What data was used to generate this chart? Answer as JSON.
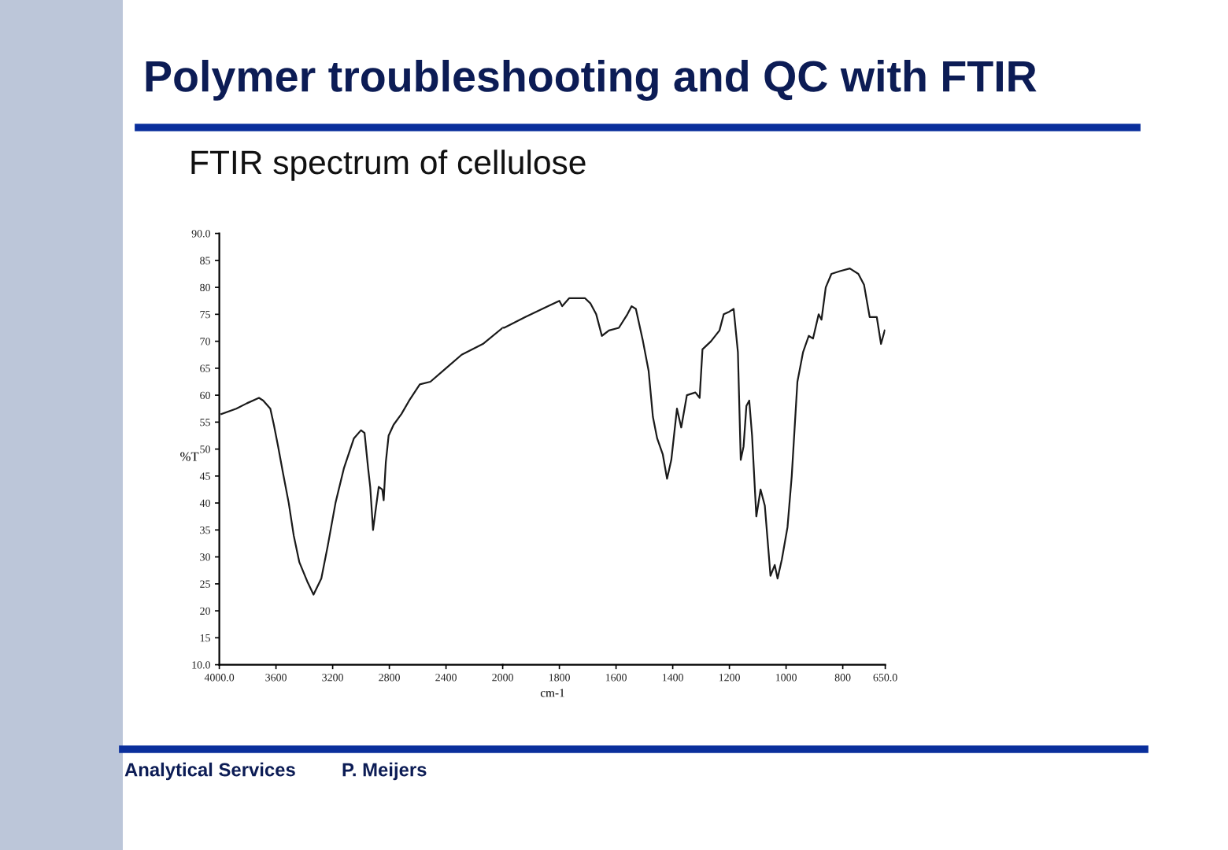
{
  "chart_data": [
    {
      "type": "line",
      "title": "Polymer troubleshooting and QC with FTIR",
      "subtitle": "FTIR spectrum of cellulose",
      "ylabel": "%T",
      "annotations": [
        "Analytical Services",
        "P. Meijers"
      ],
      "x": [
        3985,
        3880,
        3805,
        3720,
        3690,
        3640,
        3615,
        3585,
        3550,
        3510,
        3475,
        3435,
        3380,
        3335,
        3280,
        3235,
        3180,
        3120,
        3050,
        3000,
        2975,
        2950,
        2935,
        2915,
        2895,
        2875,
        2850,
        2840,
        2825,
        2805,
        2770,
        2715,
        2660,
        2585,
        2510,
        2400,
        2290,
        2140,
        2000
      ],
      "values": [
        56.5,
        57.5,
        58.5,
        59.5,
        59,
        57.5,
        54.5,
        50.5,
        45.5,
        40,
        34,
        29,
        25.5,
        23,
        26,
        32,
        40,
        46.5,
        52,
        53.5,
        53,
        46.5,
        43,
        35,
        39,
        43,
        42.5,
        40.5,
        47.5,
        52.5,
        54.5,
        56.5,
        59,
        62,
        62.5,
        65,
        67.5,
        69.5,
        72.5
      ],
      "color": "#1a1a1a",
      "xlim": [
        4000,
        2000
      ],
      "xticks": [
        {
          "value": 4000,
          "label": "4000.0"
        },
        3600,
        3200,
        2800,
        2400,
        2000
      ],
      "ylim": [
        10,
        90
      ],
      "yticks": [
        {
          "value": 10,
          "label": "10.0"
        },
        15,
        20,
        25,
        30,
        35,
        40,
        45,
        50,
        55,
        60,
        65,
        70,
        75,
        80,
        85,
        {
          "value": 90,
          "label": "90.0"
        }
      ]
    },
    {
      "type": "line",
      "xlabel": "cm-1",
      "x": [
        2000,
        1995,
        1920,
        1840,
        1800,
        1790,
        1765,
        1720,
        1710,
        1690,
        1670,
        1650,
        1625,
        1590,
        1560,
        1545,
        1530,
        1505,
        1485,
        1470,
        1455,
        1435,
        1420,
        1405,
        1385,
        1370,
        1350,
        1320,
        1305,
        1295,
        1265,
        1235,
        1220,
        1200,
        1185,
        1170,
        1160,
        1150,
        1140,
        1130,
        1120,
        1105,
        1090,
        1075,
        1055,
        1040,
        1030,
        1015,
        995,
        980,
        960,
        940,
        920,
        905,
        885,
        875,
        860,
        840,
        810,
        775,
        745,
        725,
        705,
        680,
        665,
        652
      ],
      "values": [
        72.5,
        72.5,
        74.5,
        76.5,
        77.5,
        76.5,
        78,
        78,
        78,
        77,
        75,
        71,
        72,
        72.5,
        75,
        76.5,
        76,
        70,
        64.5,
        56,
        52,
        49,
        44.5,
        48,
        57.5,
        54,
        60,
        60.5,
        59.5,
        68.5,
        70,
        72,
        75,
        75.5,
        76,
        68,
        48,
        50.5,
        58,
        59,
        52.5,
        37.5,
        42.5,
        39.5,
        26.5,
        28.5,
        26,
        29.5,
        35.5,
        45,
        62.5,
        68,
        71,
        70.5,
        75,
        74,
        80,
        82.5,
        83,
        83.5,
        82.5,
        80.5,
        74.5,
        74.5,
        69.5,
        72
      ],
      "color": "#1a1a1a",
      "xlim": [
        2000,
        650
      ],
      "xticks": [
        1800,
        1600,
        1400,
        1200,
        1000,
        800,
        {
          "value": 650,
          "label": "650.0"
        }
      ],
      "ylim": [
        10,
        90
      ],
      "tick_labels": "x"
    }
  ]
}
